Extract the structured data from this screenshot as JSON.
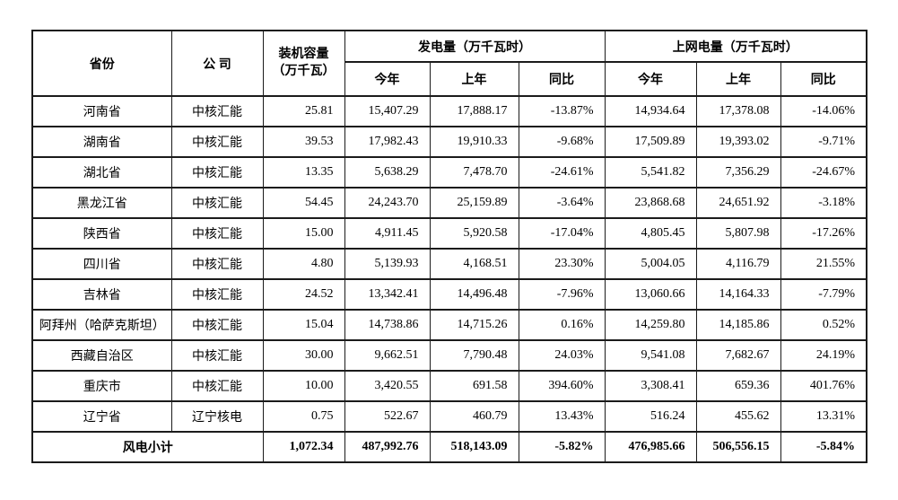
{
  "table": {
    "headers": {
      "province": "省份",
      "company": "公 司",
      "capacity_line1": "装机容量",
      "capacity_line2": "（万千瓦）",
      "generation_group": "发电量（万千瓦时）",
      "grid_group": "上网电量（万千瓦时）",
      "this_year": "今年",
      "last_year": "上年",
      "yoy": "同比"
    },
    "rows": [
      {
        "province": "河南省",
        "company": "中核汇能",
        "capacity": "25.81",
        "gen_this": "15,407.29",
        "gen_last": "17,888.17",
        "gen_yoy": "-13.87%",
        "grid_this": "14,934.64",
        "grid_last": "17,378.08",
        "grid_yoy": "-14.06%"
      },
      {
        "province": "湖南省",
        "company": "中核汇能",
        "capacity": "39.53",
        "gen_this": "17,982.43",
        "gen_last": "19,910.33",
        "gen_yoy": "-9.68%",
        "grid_this": "17,509.89",
        "grid_last": "19,393.02",
        "grid_yoy": "-9.71%"
      },
      {
        "province": "湖北省",
        "company": "中核汇能",
        "capacity": "13.35",
        "gen_this": "5,638.29",
        "gen_last": "7,478.70",
        "gen_yoy": "-24.61%",
        "grid_this": "5,541.82",
        "grid_last": "7,356.29",
        "grid_yoy": "-24.67%"
      },
      {
        "province": "黑龙江省",
        "company": "中核汇能",
        "capacity": "54.45",
        "gen_this": "24,243.70",
        "gen_last": "25,159.89",
        "gen_yoy": "-3.64%",
        "grid_this": "23,868.68",
        "grid_last": "24,651.92",
        "grid_yoy": "-3.18%"
      },
      {
        "province": "陕西省",
        "company": "中核汇能",
        "capacity": "15.00",
        "gen_this": "4,911.45",
        "gen_last": "5,920.58",
        "gen_yoy": "-17.04%",
        "grid_this": "4,805.45",
        "grid_last": "5,807.98",
        "grid_yoy": "-17.26%"
      },
      {
        "province": "四川省",
        "company": "中核汇能",
        "capacity": "4.80",
        "gen_this": "5,139.93",
        "gen_last": "4,168.51",
        "gen_yoy": "23.30%",
        "grid_this": "5,004.05",
        "grid_last": "4,116.79",
        "grid_yoy": "21.55%"
      },
      {
        "province": "吉林省",
        "company": "中核汇能",
        "capacity": "24.52",
        "gen_this": "13,342.41",
        "gen_last": "14,496.48",
        "gen_yoy": "-7.96%",
        "grid_this": "13,060.66",
        "grid_last": "14,164.33",
        "grid_yoy": "-7.79%"
      },
      {
        "province": "阿拜州（哈萨克斯坦）",
        "company": "中核汇能",
        "capacity": "15.04",
        "gen_this": "14,738.86",
        "gen_last": "14,715.26",
        "gen_yoy": "0.16%",
        "grid_this": "14,259.80",
        "grid_last": "14,185.86",
        "grid_yoy": "0.52%"
      },
      {
        "province": "西藏自治区",
        "company": "中核汇能",
        "capacity": "30.00",
        "gen_this": "9,662.51",
        "gen_last": "7,790.48",
        "gen_yoy": "24.03%",
        "grid_this": "9,541.08",
        "grid_last": "7,682.67",
        "grid_yoy": "24.19%"
      },
      {
        "province": "重庆市",
        "company": "中核汇能",
        "capacity": "10.00",
        "gen_this": "3,420.55",
        "gen_last": "691.58",
        "gen_yoy": "394.60%",
        "grid_this": "3,308.41",
        "grid_last": "659.36",
        "grid_yoy": "401.76%"
      },
      {
        "province": "辽宁省",
        "company": "辽宁核电",
        "capacity": "0.75",
        "gen_this": "522.67",
        "gen_last": "460.79",
        "gen_yoy": "13.43%",
        "grid_this": "516.24",
        "grid_last": "455.62",
        "grid_yoy": "13.31%"
      }
    ],
    "subtotal": {
      "label": "风电小计",
      "capacity": "1,072.34",
      "gen_this": "487,992.76",
      "gen_last": "518,143.09",
      "gen_yoy": "-5.82%",
      "grid_this": "476,985.66",
      "grid_last": "506,556.15",
      "grid_yoy": "-5.84%"
    }
  }
}
